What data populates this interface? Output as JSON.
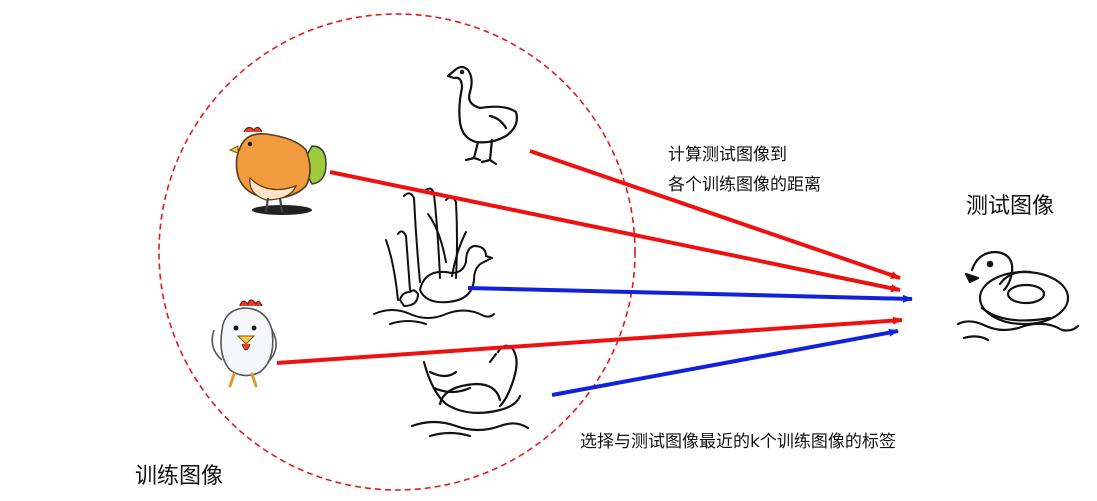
{
  "labels": {
    "training_images": "训练图像",
    "test_image": "测试图像",
    "distance_line1": "计算测试图像到",
    "distance_line2": "各个训练图像的距离",
    "knn_caption": "选择与测试图像最近的k个训练图像的标签"
  },
  "colors": {
    "distance_arrow": "#ee1111",
    "nearest_arrow": "#1122dd",
    "boundary": "#e31a1c",
    "chicken_orange": "#f19a3e",
    "chicken_green": "#9ccc3c",
    "comb_red": "#e0442e"
  },
  "icons": [
    "goose-icon",
    "hen-icon",
    "duck-family-icon",
    "rooster-icon",
    "swan-icon",
    "rubber-duck-icon"
  ]
}
